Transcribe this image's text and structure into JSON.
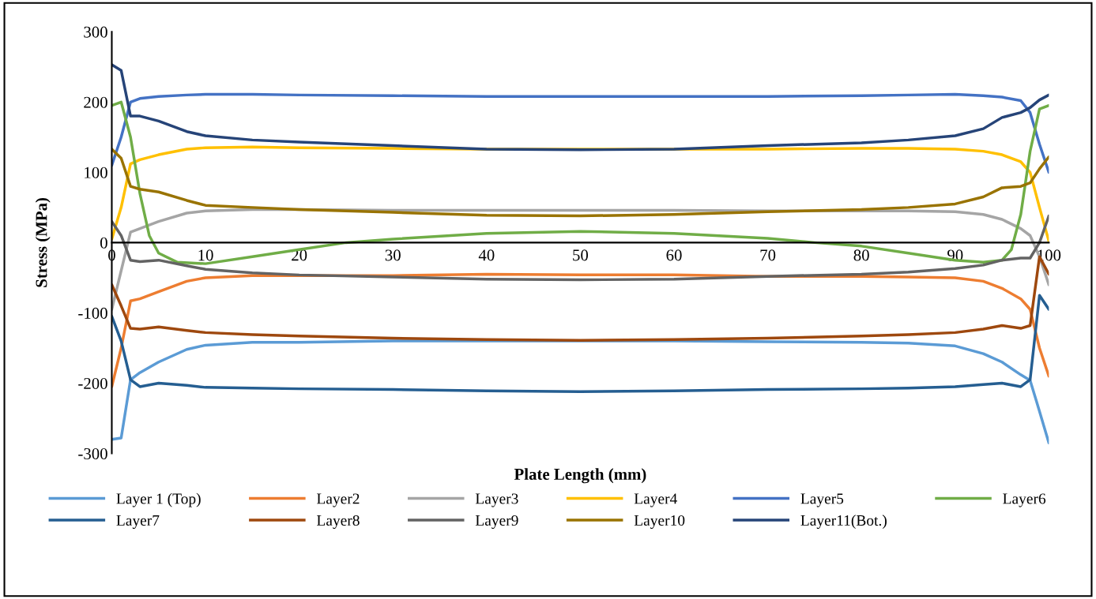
{
  "chart_data": {
    "type": "line",
    "xlabel": "Plate Length (mm)",
    "ylabel": "Stress (MPa)",
    "x": [
      0,
      1,
      2,
      3,
      5,
      8,
      10,
      15,
      20,
      30,
      40,
      50,
      60,
      70,
      80,
      85,
      90,
      93,
      95,
      97,
      98,
      99,
      100
    ],
    "xlim": [
      0,
      100
    ],
    "xticks": [
      0,
      10,
      20,
      30,
      40,
      50,
      60,
      70,
      80,
      90,
      100
    ],
    "ylim": [
      -300,
      300
    ],
    "yticks": [
      -300,
      -200,
      -100,
      0,
      100,
      200,
      300
    ],
    "grid": false,
    "legend": "bottom",
    "marker": "none",
    "line_style": "solid",
    "series": [
      {
        "name": "Layer 1 (Top)",
        "color": "#5b9bd5",
        "values": [
          -280,
          -278,
          -195,
          -185,
          -170,
          -152,
          -146,
          -142,
          -142,
          -140,
          -140,
          -140,
          -140,
          -141,
          -142,
          -143,
          -147,
          -158,
          -170,
          -188,
          -196,
          -240,
          -285
        ]
      },
      {
        "name": "Layer2",
        "color": "#ed7d31",
        "values": [
          -205,
          -150,
          -83,
          -80,
          -70,
          -55,
          -50,
          -47,
          -47,
          -47,
          -45,
          -46,
          -46,
          -48,
          -48,
          -49,
          -50,
          -55,
          -65,
          -80,
          -95,
          -150,
          -190
        ]
      },
      {
        "name": "Layer3",
        "color": "#a5a5a5",
        "values": [
          -95,
          -40,
          15,
          20,
          30,
          42,
          45,
          47,
          47,
          46,
          46,
          46,
          46,
          45,
          45,
          45,
          44,
          40,
          33,
          20,
          10,
          -20,
          -60
        ]
      },
      {
        "name": "Layer4",
        "color": "#ffc000",
        "values": [
          5,
          50,
          112,
          118,
          125,
          133,
          135,
          136,
          135,
          134,
          133,
          133,
          133,
          133,
          134,
          134,
          133,
          130,
          125,
          115,
          100,
          50,
          2
        ]
      },
      {
        "name": "Layer5",
        "color": "#4472c4",
        "values": [
          110,
          150,
          200,
          205,
          208,
          210,
          211,
          211,
          210,
          209,
          208,
          208,
          208,
          208,
          209,
          210,
          211,
          209,
          207,
          202,
          185,
          140,
          100
        ]
      },
      {
        "name": "Layer6",
        "color": "#70ad47",
        "x": [
          0,
          1,
          2,
          3,
          4,
          5,
          7,
          10,
          15,
          20,
          25,
          30,
          40,
          50,
          60,
          70,
          75,
          80,
          85,
          90,
          93,
          95,
          96,
          97,
          98,
          99,
          100
        ],
        "values": [
          195,
          200,
          150,
          70,
          10,
          -15,
          -28,
          -30,
          -20,
          -10,
          0,
          5,
          13,
          16,
          13,
          6,
          0,
          -5,
          -15,
          -25,
          -28,
          -25,
          -10,
          40,
          130,
          190,
          195
        ]
      },
      {
        "name": "Layer7",
        "color": "#255e91",
        "values": [
          -105,
          -140,
          -195,
          -205,
          -200,
          -203,
          -206,
          -207,
          -208,
          -209,
          -211,
          -212,
          -211,
          -209,
          -208,
          -207,
          -205,
          -202,
          -200,
          -205,
          -195,
          -75,
          -95
        ]
      },
      {
        "name": "Layer8",
        "color": "#9e480e",
        "values": [
          -60,
          -90,
          -122,
          -123,
          -120,
          -125,
          -128,
          -131,
          -133,
          -136,
          -138,
          -139,
          -138,
          -136,
          -133,
          -131,
          -128,
          -123,
          -118,
          -122,
          -118,
          -20,
          -45
        ]
      },
      {
        "name": "Layer9",
        "color": "#636363",
        "values": [
          30,
          10,
          -25,
          -27,
          -25,
          -33,
          -38,
          -43,
          -46,
          -49,
          -52,
          -53,
          -52,
          -48,
          -45,
          -42,
          -37,
          -32,
          -25,
          -22,
          -22,
          0,
          38
        ]
      },
      {
        "name": "Layer10",
        "color": "#997300",
        "values": [
          133,
          120,
          80,
          76,
          72,
          60,
          53,
          50,
          47,
          43,
          39,
          38,
          40,
          44,
          47,
          50,
          55,
          65,
          78,
          80,
          85,
          105,
          122
        ]
      },
      {
        "name": "Layer11(Bot.)",
        "color": "#264478",
        "values": [
          253,
          245,
          180,
          180,
          173,
          158,
          152,
          146,
          143,
          138,
          133,
          132,
          133,
          138,
          142,
          146,
          152,
          162,
          178,
          185,
          192,
          203,
          210
        ]
      }
    ]
  }
}
